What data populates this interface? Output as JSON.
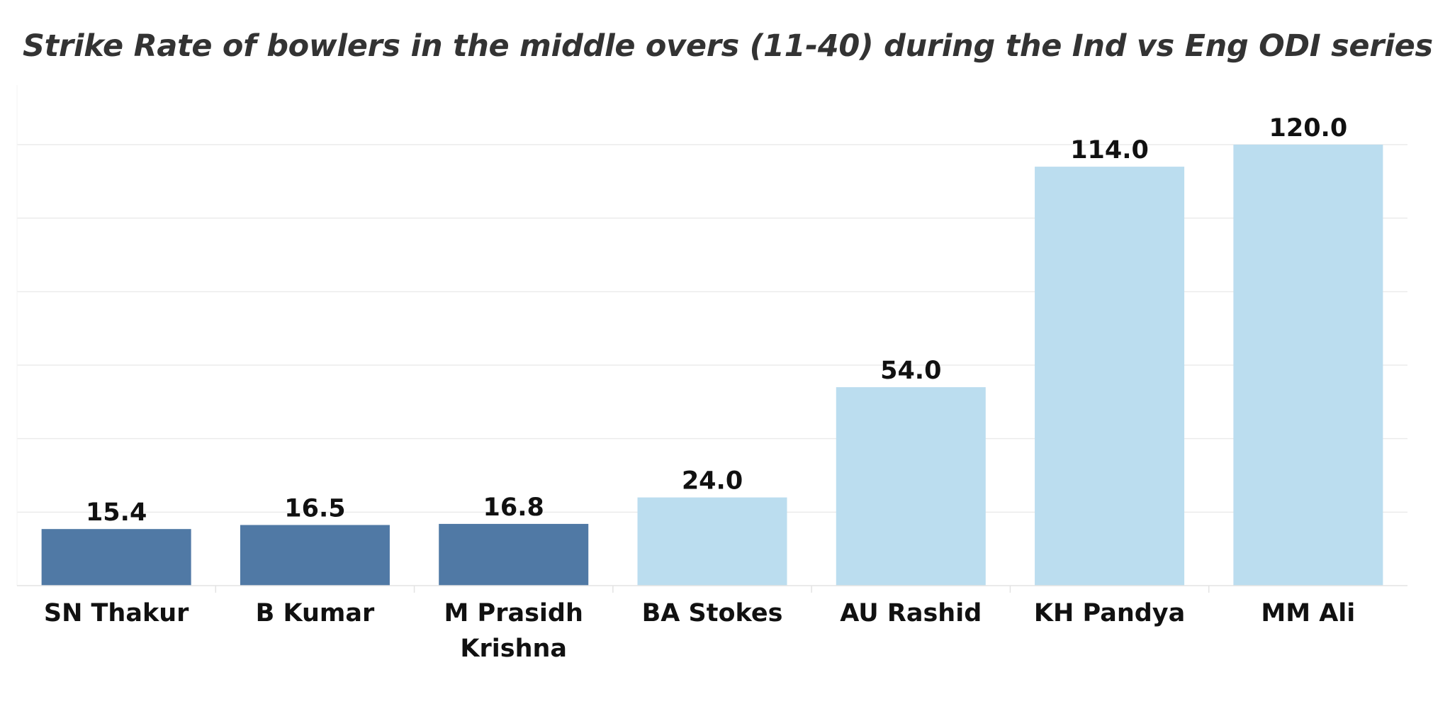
{
  "chart_data": {
    "type": "bar",
    "title": "Strike Rate of bowlers in the middle overs (11-40) during the Ind vs Eng ODI series",
    "xlabel": "",
    "ylabel": "",
    "ylim": [
      0,
      140
    ],
    "grid": true,
    "legend": "none",
    "categories": [
      [
        "SN Thakur"
      ],
      [
        "B Kumar"
      ],
      [
        "M Prasidh",
        "Krishna"
      ],
      [
        "BA Stokes"
      ],
      [
        "AU Rashid"
      ],
      [
        "KH Pandya"
      ],
      [
        "MM Ali"
      ]
    ],
    "values": [
      15.4,
      16.5,
      16.8,
      24.0,
      54.0,
      114.0,
      120.0
    ],
    "value_labels": [
      "15.4",
      "16.5",
      "16.8",
      "24.0",
      "54.0",
      "114.0",
      "120.0"
    ],
    "bar_colors": [
      "#5079a5",
      "#5079a5",
      "#5079a5",
      "#bbddef",
      "#bbddef",
      "#bbddef",
      "#bbddef"
    ]
  },
  "colors": {
    "india_bar": "#5079a5",
    "england_bar": "#bbddef",
    "gridline": "#ebebeb",
    "title": "#333333"
  }
}
